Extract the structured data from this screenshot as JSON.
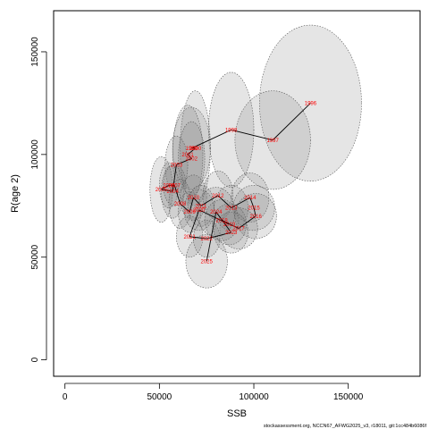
{
  "chart_data": {
    "type": "scatter",
    "title": "",
    "xlabel": "SSB",
    "ylabel": "R(age 2)",
    "xlim": [
      -6000,
      188000
    ],
    "ylim": [
      -8000,
      170000
    ],
    "x_ticks": [
      0,
      50000,
      100000,
      150000
    ],
    "y_ticks": [
      0,
      50000,
      100000,
      150000
    ],
    "x_tick_labels": [
      "0",
      "50000",
      "100000",
      "150000"
    ],
    "y_tick_labels": [
      "0",
      "50000",
      "100000",
      "150000"
    ],
    "grid": false,
    "footer": "stockassessment.org, NCCN67_AFWG2025_v3, r18011, git:1cc484b6086f",
    "colors": {
      "ellipse_fill": "#7f7f7f",
      "ellipse_stroke": "#555555",
      "path": "#000000",
      "labels": "#ff0000"
    },
    "points": [
      {
        "year": "1996",
        "x": 130000,
        "y": 125000,
        "sx": 27000,
        "sy": 38000
      },
      {
        "year": "1997",
        "x": 110000,
        "y": 107000,
        "sx": 20000,
        "sy": 24000
      },
      {
        "year": "1998",
        "x": 88000,
        "y": 112000,
        "sx": 12000,
        "sy": 28000
      },
      {
        "year": "1999",
        "x": 67000,
        "y": 103000,
        "sx": 10000,
        "sy": 20000
      },
      {
        "year": "2000",
        "x": 69000,
        "y": 103000,
        "sx": 8000,
        "sy": 28000
      },
      {
        "year": "2001",
        "x": 65000,
        "y": 100000,
        "sx": 8000,
        "sy": 24000
      },
      {
        "year": "2002",
        "x": 67000,
        "y": 98000,
        "sx": 7000,
        "sy": 18000
      },
      {
        "year": "2003",
        "x": 59000,
        "y": 95000,
        "sx": 6000,
        "sy": 14000
      },
      {
        "year": "2004",
        "x": 57000,
        "y": 82000,
        "sx": 6000,
        "sy": 13000
      },
      {
        "year": "2005",
        "x": 51000,
        "y": 83000,
        "sx": 6000,
        "sy": 16000
      },
      {
        "year": "2006",
        "x": 55000,
        "y": 85000,
        "sx": 5000,
        "sy": 11000
      },
      {
        "year": "2007",
        "x": 58000,
        "y": 85000,
        "sx": 6000,
        "sy": 10000
      },
      {
        "year": "2008",
        "x": 61000,
        "y": 76000,
        "sx": 6000,
        "sy": 12000
      },
      {
        "year": "2009",
        "x": 66000,
        "y": 72000,
        "sx": 6000,
        "sy": 10000
      },
      {
        "year": "2010",
        "x": 68000,
        "y": 79000,
        "sx": 7000,
        "sy": 11000
      },
      {
        "year": "2011",
        "x": 72000,
        "y": 75000,
        "sx": 7000,
        "sy": 10000
      },
      {
        "year": "2012",
        "x": 81000,
        "y": 80000,
        "sx": 8000,
        "sy": 12000
      },
      {
        "year": "2013",
        "x": 88000,
        "y": 74000,
        "sx": 9000,
        "sy": 11000
      },
      {
        "year": "2014",
        "x": 98000,
        "y": 79000,
        "sx": 10000,
        "sy": 12000
      },
      {
        "year": "2015",
        "x": 100000,
        "y": 74000,
        "sx": 11000,
        "sy": 11000
      },
      {
        "year": "2016",
        "x": 101000,
        "y": 70000,
        "sx": 11000,
        "sy": 11000
      },
      {
        "year": "2017",
        "x": 92000,
        "y": 64000,
        "sx": 10000,
        "sy": 10000
      },
      {
        "year": "2018",
        "x": 83000,
        "y": 68000,
        "sx": 9000,
        "sy": 10000
      },
      {
        "year": "2019",
        "x": 87000,
        "y": 66000,
        "sx": 9000,
        "sy": 10000
      },
      {
        "year": "2020",
        "x": 71000,
        "y": 73000,
        "sx": 8000,
        "sy": 10000
      },
      {
        "year": "2021",
        "x": 66000,
        "y": 60000,
        "sx": 7000,
        "sy": 10000
      },
      {
        "year": "2022",
        "x": 75000,
        "y": 59000,
        "sx": 7000,
        "sy": 9000
      },
      {
        "year": "2023",
        "x": 88000,
        "y": 62000,
        "sx": 9000,
        "sy": 10000
      },
      {
        "year": "2024",
        "x": 80000,
        "y": 72000,
        "sx": 10000,
        "sy": 12000
      },
      {
        "year": "2025",
        "x": 75000,
        "y": 48000,
        "sx": 11000,
        "sy": 13000
      }
    ]
  }
}
